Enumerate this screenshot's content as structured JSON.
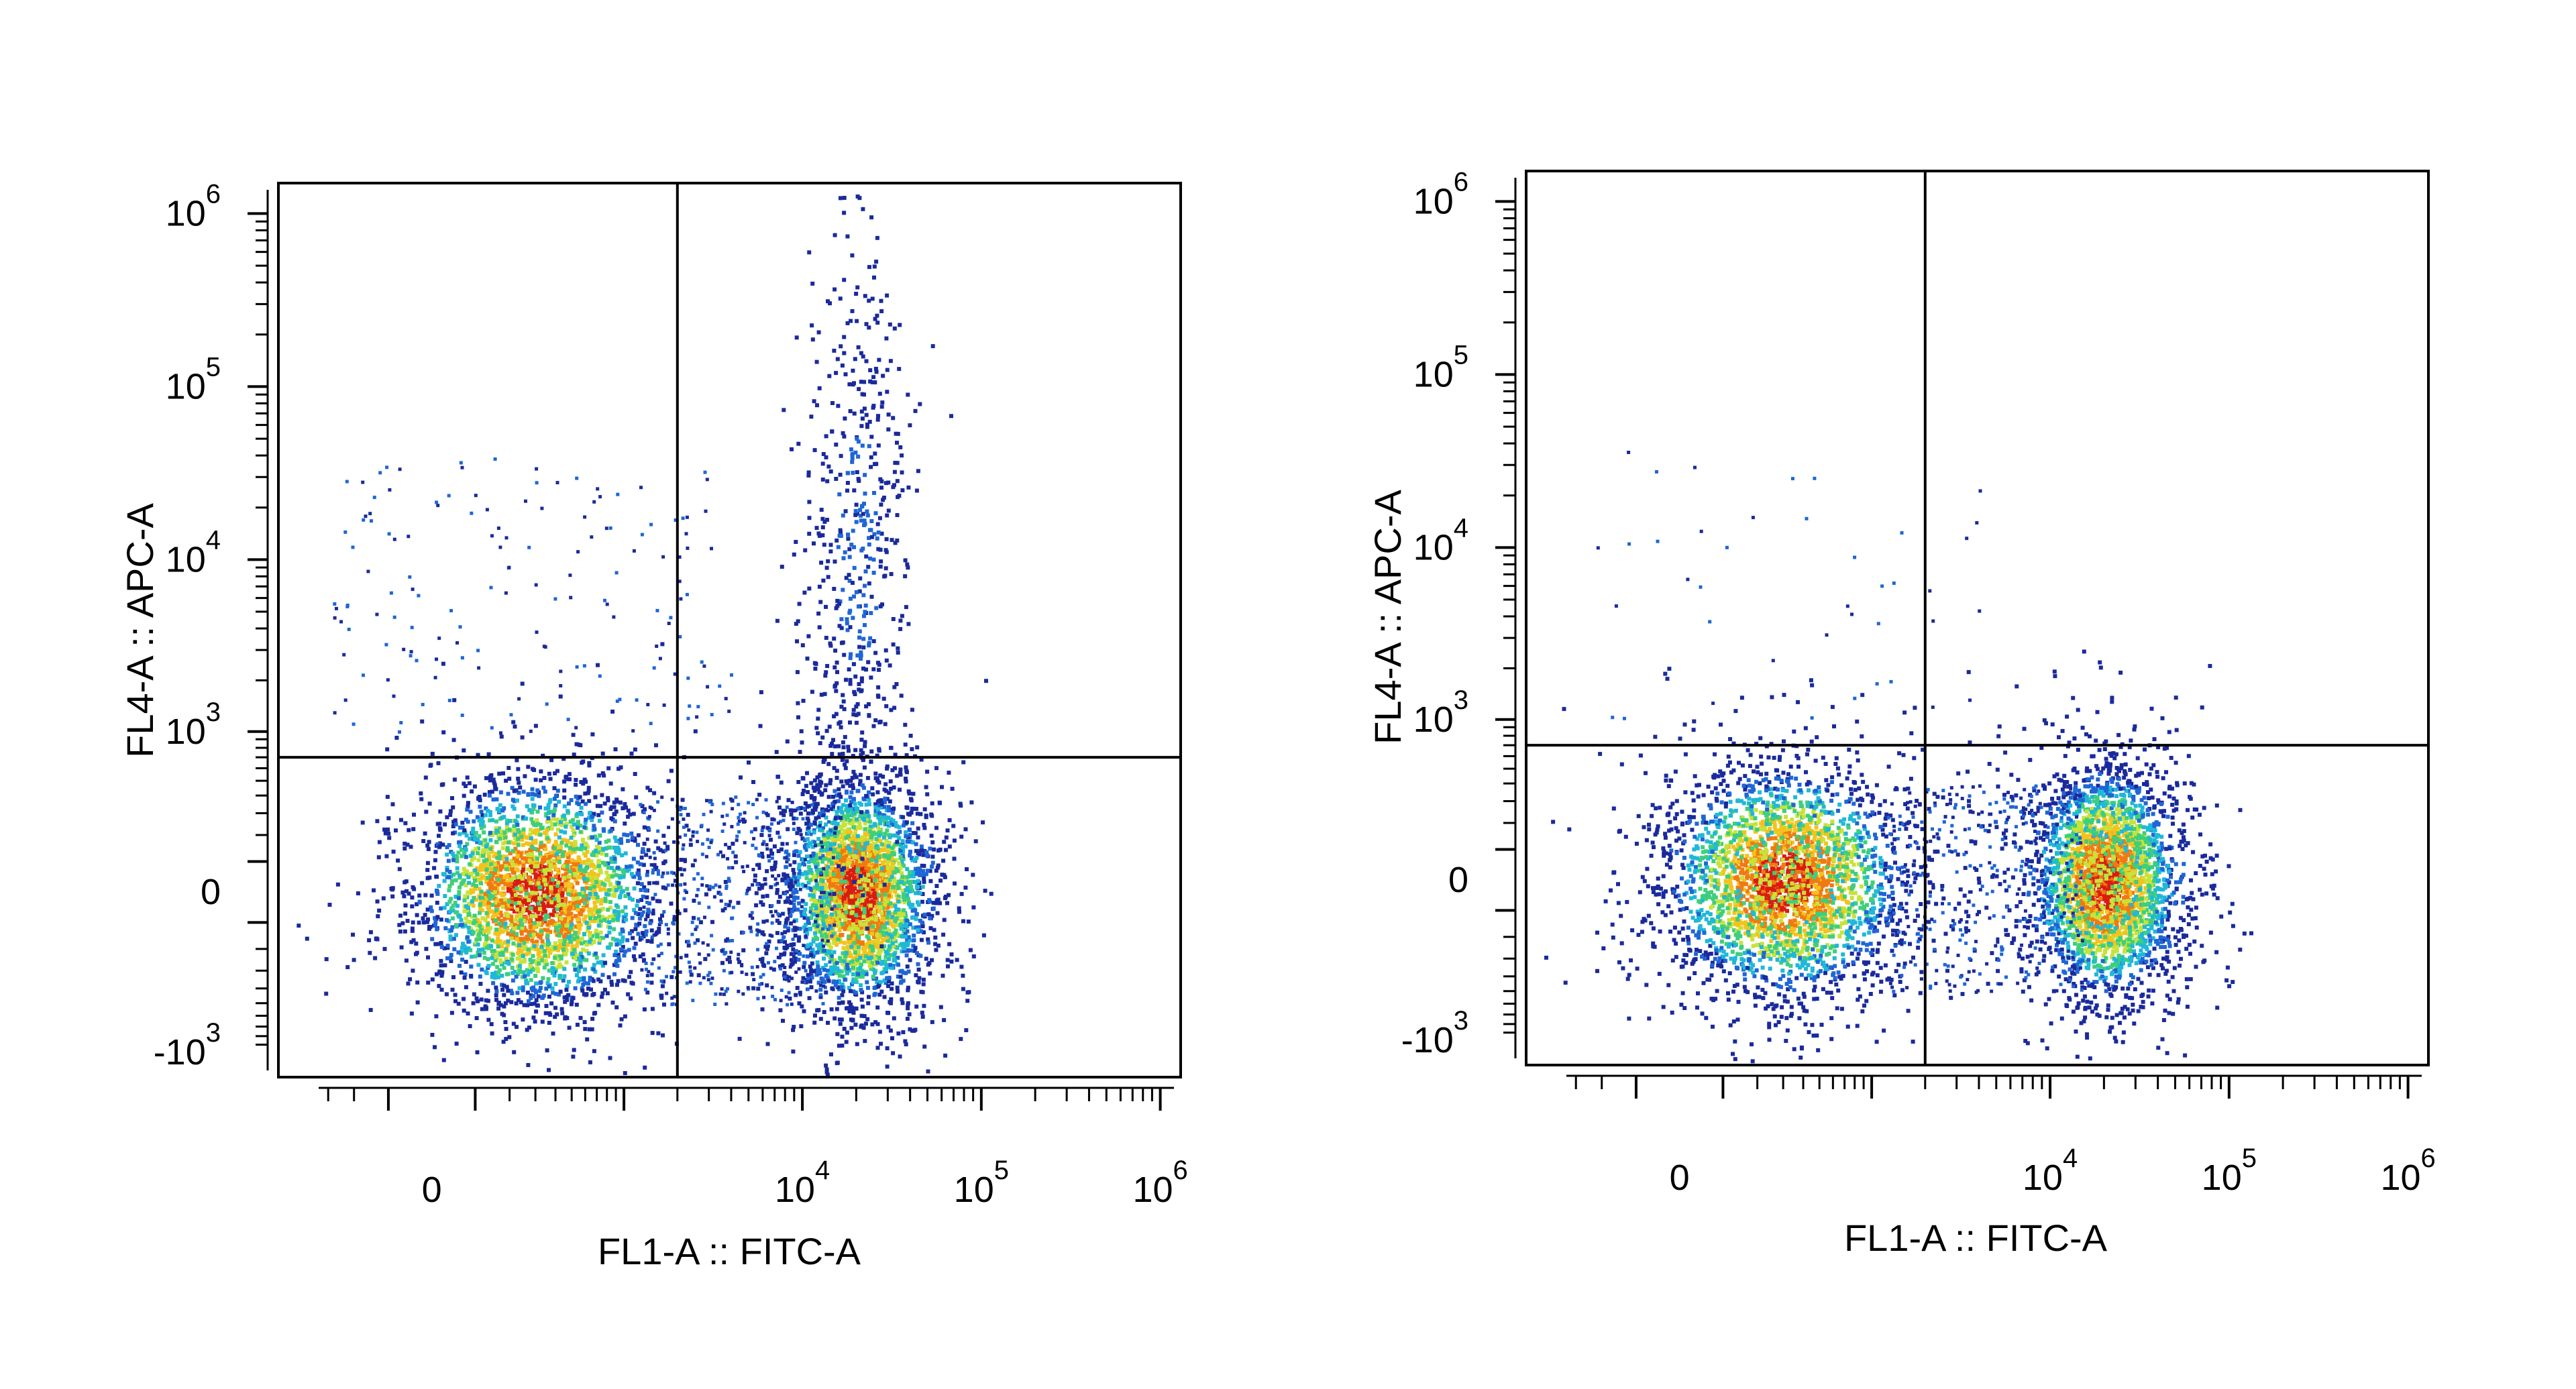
{
  "chart_data": [
    {
      "type": "scatter",
      "subtype": "flow-cytometry-density-plot",
      "xlabel": "FL1-A :: FITC-A",
      "ylabel": "FL4-A :: APC-A",
      "x_scale": "biexponential",
      "y_scale": "biexponential",
      "x_ticks": [
        {
          "value": 0,
          "base": "0",
          "exp": ""
        },
        {
          "value": 10000,
          "base": "10",
          "exp": "4"
        },
        {
          "value": 100000,
          "base": "10",
          "exp": "5"
        },
        {
          "value": 1000000,
          "base": "10",
          "exp": "6"
        }
      ],
      "y_ticks": [
        {
          "value": -1000,
          "base": "-10",
          "exp": "3"
        },
        {
          "value": 0,
          "base": "0",
          "exp": ""
        },
        {
          "value": 1000,
          "base": "10",
          "exp": "3"
        },
        {
          "value": 10000,
          "base": "10",
          "exp": "4"
        },
        {
          "value": 100000,
          "base": "10",
          "exp": "5"
        },
        {
          "value": 1000000,
          "base": "10",
          "exp": "6"
        }
      ],
      "quadrant_gate": {
        "x": 2000,
        "y": 700
      },
      "populations": [
        {
          "x": 300,
          "y": 0,
          "intensity": "high"
        },
        {
          "x": 20000,
          "y": 0,
          "intensity": "high"
        },
        {
          "x": 20000,
          "y": 12000,
          "intensity": "low"
        }
      ],
      "legend": "none",
      "grid": false
    },
    {
      "type": "scatter",
      "subtype": "flow-cytometry-density-plot",
      "xlabel": "FL1-A :: FITC-A",
      "ylabel": "FL4-A :: APC-A",
      "x_scale": "biexponential",
      "y_scale": "biexponential",
      "x_ticks": [
        {
          "value": 0,
          "base": "0",
          "exp": ""
        },
        {
          "value": 10000,
          "base": "10",
          "exp": "4"
        },
        {
          "value": 100000,
          "base": "10",
          "exp": "5"
        },
        {
          "value": 1000000,
          "base": "10",
          "exp": "6"
        }
      ],
      "y_ticks": [
        {
          "value": -1000,
          "base": "-10",
          "exp": "3"
        },
        {
          "value": 0,
          "base": "0",
          "exp": ""
        },
        {
          "value": 1000,
          "base": "10",
          "exp": "3"
        },
        {
          "value": 10000,
          "base": "10",
          "exp": "4"
        },
        {
          "value": 100000,
          "base": "10",
          "exp": "5"
        },
        {
          "value": 1000000,
          "base": "10",
          "exp": "6"
        }
      ],
      "quadrant_gate": {
        "x": 2000,
        "y": 700
      },
      "populations": [
        {
          "x": 300,
          "y": 0,
          "intensity": "high"
        },
        {
          "x": 20000,
          "y": 0,
          "intensity": "high"
        }
      ],
      "legend": "none",
      "grid": false
    }
  ],
  "density_colors": [
    "#1a2a9c",
    "#1f66d6",
    "#1fb8d8",
    "#3ecf7a",
    "#c8e23a",
    "#f5c21b",
    "#f07a12",
    "#d91c10"
  ]
}
